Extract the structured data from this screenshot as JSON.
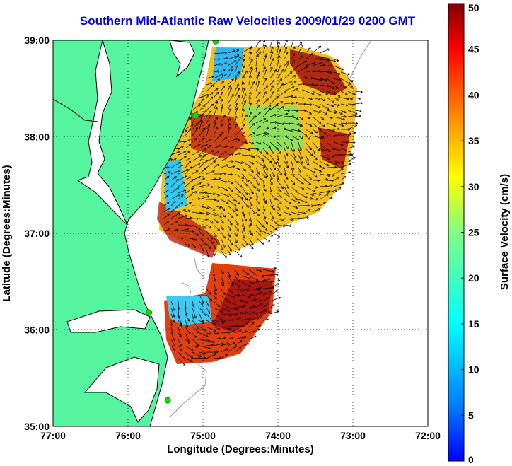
{
  "title": "Southern Mid-Atlantic Raw Velocities 2009/01/29 0200 GMT",
  "map": {
    "xlabel": "Longitude (Degrees:Minutes)",
    "ylabel": "Latitude (Degrees:Minutes)",
    "lon_range": [
      -77,
      -72
    ],
    "lat_range": [
      35,
      39
    ],
    "lon_ticks": [
      {
        "value": -77,
        "label": "77:00"
      },
      {
        "value": -76,
        "label": "76:00"
      },
      {
        "value": -75,
        "label": "75:00"
      },
      {
        "value": -74,
        "label": "74:00"
      },
      {
        "value": -73,
        "label": "73:00"
      },
      {
        "value": -72,
        "label": "72:00"
      }
    ],
    "lat_ticks": [
      {
        "value": 35,
        "label": "35:00"
      },
      {
        "value": 36,
        "label": "36:00"
      },
      {
        "value": 37,
        "label": "37:00"
      },
      {
        "value": 38,
        "label": "38:00"
      },
      {
        "value": 39,
        "label": "39:00"
      }
    ],
    "grid": "dotted",
    "colors": {
      "land": "#55f5a0",
      "coast": "#000000",
      "isobath": "#999999",
      "station": "#22cc22"
    },
    "stations": [
      {
        "lon": -74.83,
        "lat": 38.99
      },
      {
        "lon": -75.1,
        "lat": 38.22
      },
      {
        "lon": -75.72,
        "lat": 36.18
      },
      {
        "lon": -75.47,
        "lat": 35.27
      }
    ]
  },
  "colorbar": {
    "label": "Surface Velocity (cm/s)",
    "min": 0,
    "max": 50,
    "ticks": [
      0,
      5,
      10,
      15,
      20,
      25,
      30,
      35,
      40,
      45,
      50
    ],
    "colormap": "jet"
  }
}
